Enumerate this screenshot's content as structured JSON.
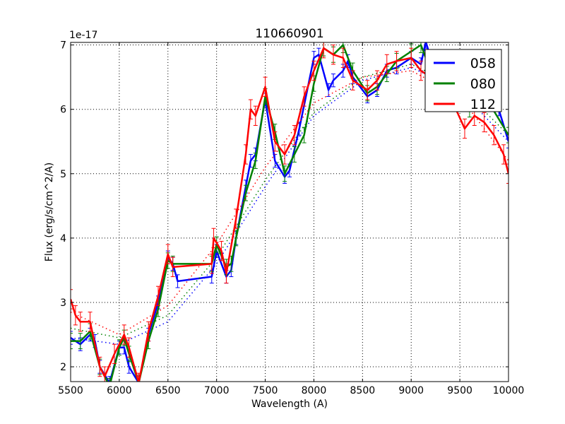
{
  "chart_data": {
    "type": "line",
    "title": "110660901",
    "xlabel": "Wavelength (A)",
    "ylabel": "Flux (erg/s/cm^2/A)",
    "y_offset_label": "1e-17",
    "xlim": [
      5500,
      10000
    ],
    "ylim": [
      1.77,
      7.04
    ],
    "xticks": [
      5500,
      6000,
      6500,
      7000,
      7500,
      8000,
      8500,
      9000,
      9500,
      10000
    ],
    "yticks": [
      2,
      3,
      4,
      5,
      6,
      7
    ],
    "grid": true,
    "legend_position": "top-right",
    "series": [
      {
        "name": "058",
        "color": "#0000ff",
        "error": 0.1,
        "x": [
          5500,
          5600,
          5700,
          5750,
          5800,
          5900,
          6000,
          6050,
          6100,
          6200,
          6300,
          6400,
          6500,
          6550,
          6600,
          6950,
          7000,
          7100,
          7150,
          7200,
          7300,
          7350,
          7400,
          7500,
          7600,
          7700,
          7750,
          7850,
          8000,
          8050,
          8150,
          8200,
          8300,
          8350,
          8400,
          8550,
          8650,
          8750,
          8850,
          9000,
          9100,
          9150,
          9200,
          9300,
          9400,
          9600,
          9700,
          9800,
          9900,
          10000
        ],
        "y": [
          2.45,
          2.35,
          2.5,
          2.4,
          2.0,
          1.75,
          2.3,
          2.3,
          2.0,
          1.75,
          2.5,
          3.0,
          3.7,
          3.6,
          3.33,
          3.4,
          3.8,
          3.4,
          3.5,
          4.0,
          4.8,
          5.2,
          5.3,
          6.15,
          5.2,
          4.95,
          5.05,
          5.7,
          6.8,
          6.85,
          6.3,
          6.45,
          6.6,
          6.75,
          6.5,
          6.2,
          6.3,
          6.6,
          6.65,
          6.8,
          6.7,
          7.05,
          6.8,
          6.7,
          6.6,
          6.3,
          6.2,
          6.1,
          6.0,
          5.5
        ],
        "fit_x": [
          5500,
          6000,
          6500,
          7000,
          7500,
          8000,
          8500,
          9000,
          9500,
          10000
        ],
        "fit_y": [
          2.45,
          2.35,
          2.7,
          3.6,
          4.8,
          5.9,
          6.45,
          6.65,
          6.3,
          5.5
        ]
      },
      {
        "name": "080",
        "color": "#008000",
        "error": 0.12,
        "x": [
          5500,
          5600,
          5700,
          5800,
          5900,
          6000,
          6050,
          6100,
          6200,
          6300,
          6400,
          6500,
          6550,
          6950,
          7000,
          7100,
          7150,
          7200,
          7300,
          7400,
          7500,
          7600,
          7700,
          7800,
          7900,
          8000,
          8100,
          8200,
          8300,
          8400,
          8550,
          8650,
          8750,
          8850,
          9000,
          9100,
          9200,
          9400,
          9600,
          9800,
          10000
        ],
        "y": [
          2.4,
          2.4,
          2.55,
          2.0,
          1.7,
          2.3,
          2.45,
          2.2,
          1.75,
          2.4,
          2.9,
          3.65,
          3.6,
          3.6,
          3.9,
          3.55,
          3.6,
          4.0,
          4.7,
          5.2,
          6.2,
          5.65,
          5.0,
          5.3,
          5.6,
          6.4,
          6.95,
          6.85,
          7.0,
          6.6,
          6.25,
          6.35,
          6.55,
          6.75,
          6.9,
          7.0,
          6.6,
          6.2,
          6.0,
          6.1,
          5.6
        ],
        "fit_x": [
          5500,
          6000,
          6500,
          7000,
          7500,
          8000,
          8500,
          9000,
          9500,
          10000
        ],
        "fit_y": [
          2.6,
          2.45,
          2.8,
          3.7,
          4.9,
          5.95,
          6.5,
          6.7,
          6.35,
          5.6
        ]
      },
      {
        "name": "112",
        "color": "#ff0000",
        "error": 0.15,
        "x": [
          5500,
          5550,
          5600,
          5700,
          5800,
          5850,
          5950,
          6050,
          6100,
          6200,
          6300,
          6400,
          6500,
          6550,
          6950,
          6970,
          7050,
          7100,
          7200,
          7300,
          7350,
          7400,
          7500,
          7600,
          7700,
          7800,
          7900,
          8000,
          8100,
          8200,
          8300,
          8400,
          8550,
          8650,
          8750,
          8850,
          9000,
          9100,
          9200,
          9400,
          9550,
          9650,
          9750,
          9850,
          9950,
          10000
        ],
        "y": [
          3.05,
          2.8,
          2.7,
          2.7,
          2.0,
          1.85,
          2.2,
          2.5,
          2.3,
          1.75,
          2.55,
          3.1,
          3.75,
          3.55,
          3.6,
          4.0,
          3.8,
          3.45,
          4.3,
          5.3,
          6.0,
          5.9,
          6.35,
          5.5,
          5.3,
          5.6,
          6.2,
          6.6,
          6.95,
          6.85,
          6.8,
          6.45,
          6.3,
          6.45,
          6.7,
          6.75,
          6.8,
          6.6,
          6.5,
          6.2,
          5.7,
          5.9,
          5.8,
          5.6,
          5.3,
          5.0
        ],
        "fit_x": [
          5500,
          6000,
          6500,
          7000,
          7500,
          8000,
          8500,
          9000,
          9500,
          10000
        ],
        "fit_y": [
          2.85,
          2.5,
          2.95,
          3.9,
          5.1,
          6.1,
          6.5,
          6.6,
          6.2,
          5.2
        ]
      }
    ]
  }
}
